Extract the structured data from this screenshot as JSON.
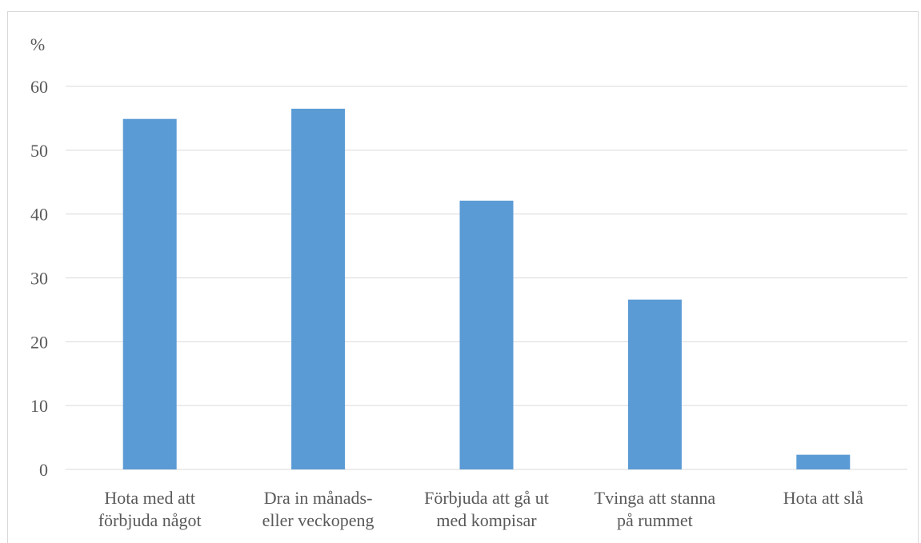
{
  "chart_data": {
    "type": "bar",
    "ylabel": "%",
    "ylim": [
      0,
      60
    ],
    "yticks": [
      0,
      10,
      20,
      30,
      40,
      50,
      60
    ],
    "grid": true,
    "legend": "none",
    "bar_color": "#5b9bd5",
    "categories": [
      [
        "Hota med att",
        "förbjuda något"
      ],
      [
        "Dra in månads-",
        "eller veckopeng"
      ],
      [
        "Förbjuda att gå ut",
        "med kompisar"
      ],
      [
        "Tvinga att stanna",
        "på rummet"
      ],
      [
        "Hota att slå"
      ]
    ],
    "values": [
      54.9,
      56.5,
      42.1,
      26.6,
      2.3
    ]
  }
}
